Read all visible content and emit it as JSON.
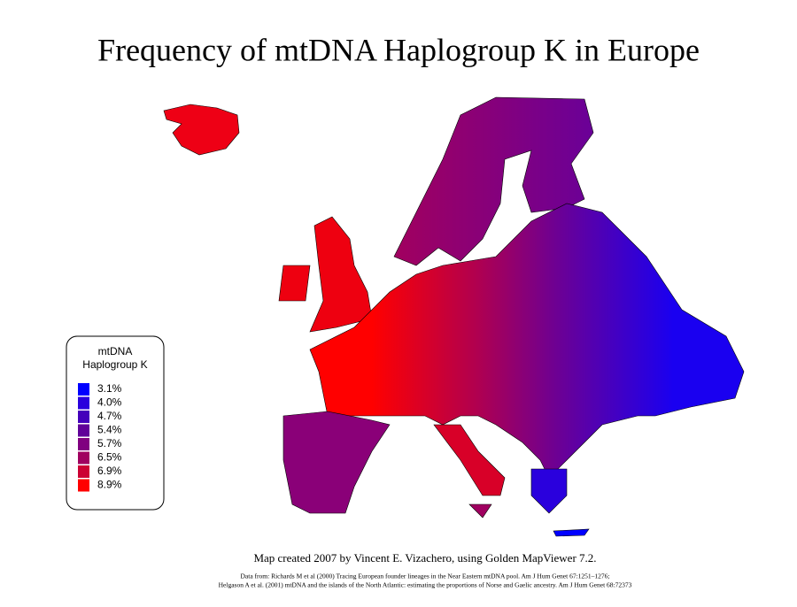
{
  "title": "Frequency of mtDNA Haplogroup K in Europe",
  "legend": {
    "title": [
      "mtDNA",
      "Haplogroup K"
    ],
    "items": [
      {
        "label": "3.1%",
        "color": "#0000ff"
      },
      {
        "label": "4.0%",
        "color": "#2a00dd"
      },
      {
        "label": "4.7%",
        "color": "#4400bb"
      },
      {
        "label": "5.4%",
        "color": "#600099"
      },
      {
        "label": "5.7%",
        "color": "#800080"
      },
      {
        "label": "6.5%",
        "color": "#a00060"
      },
      {
        "label": "6.9%",
        "color": "#cc0033"
      },
      {
        "label": "8.9%",
        "color": "#ff0000"
      }
    ]
  },
  "credits": {
    "line": "Map created 2007 by Vincent E. Vizachero, using Golden MapViewer 7.2.",
    "sources": [
      "Data from:  Richards M et al (2000) Tracing European founder lineages in the Near Eastern mtDNA pool. Am J Hum Genet 67:1251–1276;",
      "Helgason A et al. (2001) mtDNA and the islands of the North Atlantic: estimating the proportions of Norse and Gaelic ancestry. Am J Hum Genet 68:72373"
    ]
  }
}
